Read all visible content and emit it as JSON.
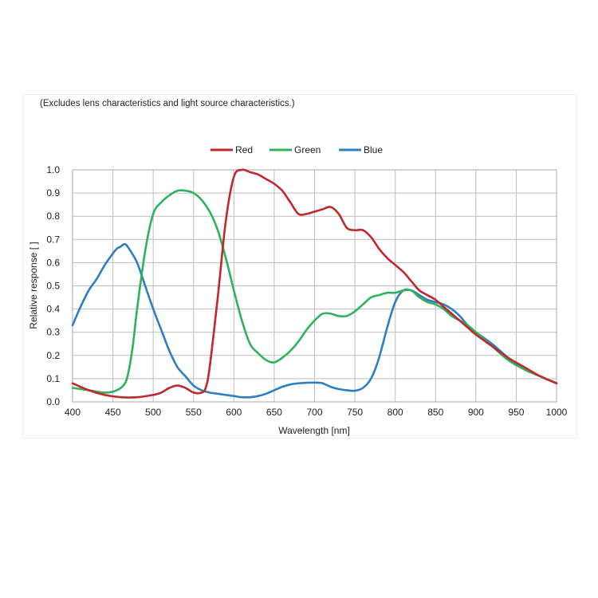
{
  "note": "(Excludes lens characteristics and light source characteristics.)",
  "chart_data": {
    "type": "line",
    "title": "",
    "xlabel": "Wavelength [nm]",
    "ylabel": "Relative response [ ]",
    "xlim": [
      400,
      1000
    ],
    "ylim": [
      0,
      1.0
    ],
    "xticks": [
      400,
      450,
      500,
      550,
      600,
      650,
      700,
      750,
      800,
      850,
      900,
      950,
      1000
    ],
    "yticks": [
      0.0,
      0.1,
      0.2,
      0.3,
      0.4,
      0.5,
      0.6,
      0.7,
      0.8,
      0.9,
      1.0
    ],
    "ytick_labels": [
      "0.0",
      "0.1",
      "0.2",
      "0.3",
      "0.4",
      "0.5",
      "0.6",
      "0.7",
      "0.8",
      "0.9",
      "1.0"
    ],
    "grid": true,
    "legend_position": "top-center",
    "series": [
      {
        "name": "Red",
        "color": "#c0282d",
        "x": [
          400,
          420,
          440,
          460,
          480,
          500,
          510,
          520,
          530,
          540,
          550,
          560,
          565,
          570,
          580,
          590,
          600,
          610,
          620,
          630,
          640,
          650,
          660,
          670,
          680,
          690,
          700,
          710,
          720,
          730,
          740,
          750,
          760,
          770,
          780,
          790,
          800,
          810,
          820,
          830,
          840,
          850,
          860,
          870,
          880,
          890,
          900,
          920,
          940,
          960,
          980,
          1000
        ],
        "y": [
          0.08,
          0.05,
          0.03,
          0.02,
          0.02,
          0.03,
          0.04,
          0.06,
          0.07,
          0.06,
          0.04,
          0.04,
          0.06,
          0.15,
          0.45,
          0.78,
          0.97,
          1.0,
          0.99,
          0.98,
          0.96,
          0.94,
          0.91,
          0.86,
          0.81,
          0.81,
          0.82,
          0.83,
          0.84,
          0.81,
          0.75,
          0.74,
          0.74,
          0.71,
          0.66,
          0.62,
          0.59,
          0.56,
          0.52,
          0.48,
          0.46,
          0.44,
          0.41,
          0.38,
          0.35,
          0.32,
          0.29,
          0.24,
          0.19,
          0.15,
          0.11,
          0.08
        ]
      },
      {
        "name": "Green",
        "color": "#2eb35a",
        "x": [
          400,
          420,
          440,
          455,
          465,
          470,
          475,
          480,
          490,
          500,
          510,
          520,
          530,
          540,
          550,
          560,
          570,
          580,
          590,
          600,
          610,
          620,
          630,
          640,
          650,
          660,
          670,
          680,
          690,
          700,
          710,
          720,
          730,
          740,
          750,
          760,
          770,
          780,
          790,
          800,
          810,
          820,
          830,
          840,
          850,
          860,
          870,
          880,
          890,
          900,
          920,
          940,
          960,
          980,
          1000
        ],
        "y": [
          0.06,
          0.05,
          0.04,
          0.05,
          0.08,
          0.14,
          0.25,
          0.4,
          0.65,
          0.81,
          0.86,
          0.89,
          0.91,
          0.91,
          0.9,
          0.87,
          0.82,
          0.74,
          0.62,
          0.48,
          0.35,
          0.25,
          0.21,
          0.18,
          0.17,
          0.19,
          0.22,
          0.26,
          0.31,
          0.35,
          0.38,
          0.38,
          0.37,
          0.37,
          0.39,
          0.42,
          0.45,
          0.46,
          0.47,
          0.47,
          0.48,
          0.48,
          0.45,
          0.43,
          0.42,
          0.4,
          0.37,
          0.35,
          0.33,
          0.3,
          0.24,
          0.18,
          0.14,
          0.11,
          0.08
        ]
      },
      {
        "name": "Blue",
        "color": "#2d7fc4",
        "x": [
          400,
          410,
          420,
          430,
          440,
          450,
          455,
          460,
          465,
          470,
          480,
          490,
          500,
          510,
          520,
          530,
          540,
          550,
          560,
          570,
          580,
          590,
          600,
          610,
          620,
          630,
          640,
          650,
          660,
          670,
          680,
          690,
          700,
          710,
          720,
          730,
          740,
          750,
          760,
          770,
          780,
          790,
          800,
          810,
          820,
          830,
          840,
          850,
          860,
          870,
          880,
          890,
          900,
          920,
          940,
          960,
          980,
          1000
        ],
        "y": [
          0.33,
          0.41,
          0.48,
          0.53,
          0.59,
          0.64,
          0.66,
          0.67,
          0.68,
          0.66,
          0.6,
          0.5,
          0.4,
          0.31,
          0.22,
          0.15,
          0.11,
          0.07,
          0.05,
          0.04,
          0.035,
          0.03,
          0.025,
          0.02,
          0.02,
          0.025,
          0.035,
          0.05,
          0.065,
          0.075,
          0.08,
          0.082,
          0.083,
          0.08,
          0.065,
          0.055,
          0.05,
          0.048,
          0.06,
          0.1,
          0.19,
          0.32,
          0.43,
          0.48,
          0.48,
          0.46,
          0.44,
          0.43,
          0.42,
          0.4,
          0.37,
          0.33,
          0.3,
          0.25,
          0.19,
          0.14,
          0.11,
          0.08
        ]
      }
    ]
  }
}
